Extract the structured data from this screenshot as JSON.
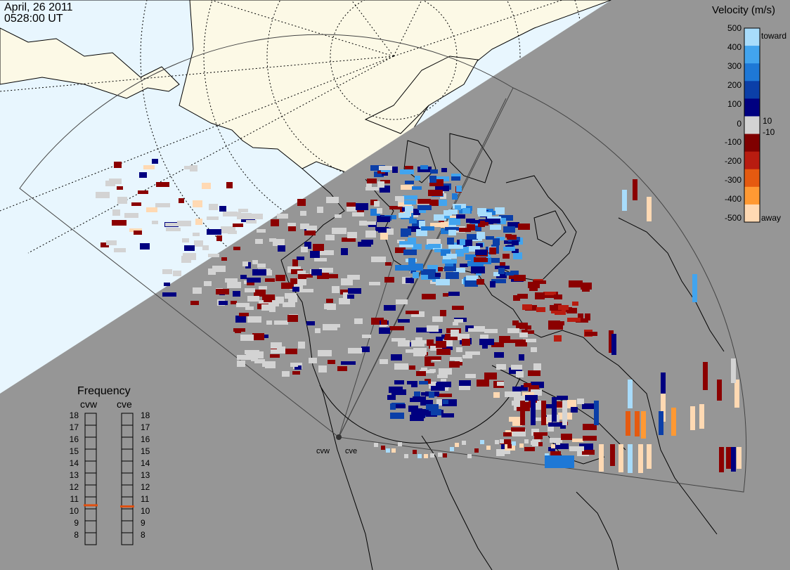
{
  "header": {
    "date": "April, 26 2011",
    "time": "0528:00 UT"
  },
  "colorbar": {
    "title": "Velocity (m/s)",
    "ticks": [
      "500",
      "400",
      "300",
      "200",
      "100",
      "10",
      "0",
      "-10",
      "-100",
      "-200",
      "-300",
      "-400",
      "-500"
    ],
    "toward_label": "toward",
    "away_label": "away",
    "colors": [
      "#ffd9b3",
      "#ff9933",
      "#e55a10",
      "#b81c10",
      "#7f0000",
      "#d3d3d3",
      "#000080",
      "#0b3fa8",
      "#1e78d6",
      "#42a4ee",
      "#a8dcfb"
    ]
  },
  "frequency": {
    "title": "Frequency",
    "radars": [
      {
        "name": "cvw",
        "selected_mhz": 10.8
      },
      {
        "name": "cve",
        "selected_mhz": 10.7
      }
    ],
    "scale": [
      "18",
      "17",
      "16",
      "15",
      "14",
      "13",
      "12",
      "11",
      "10",
      "9",
      "8"
    ],
    "marker_color": "#e05010"
  },
  "sites": [
    {
      "name": "cvw"
    },
    {
      "name": "cve"
    }
  ],
  "map_colors": {
    "day_ocean": "#e8f6fe",
    "day_land": "#fcf9e6",
    "night": "#969696",
    "coast": "#000000",
    "gridline": "#000000"
  }
}
